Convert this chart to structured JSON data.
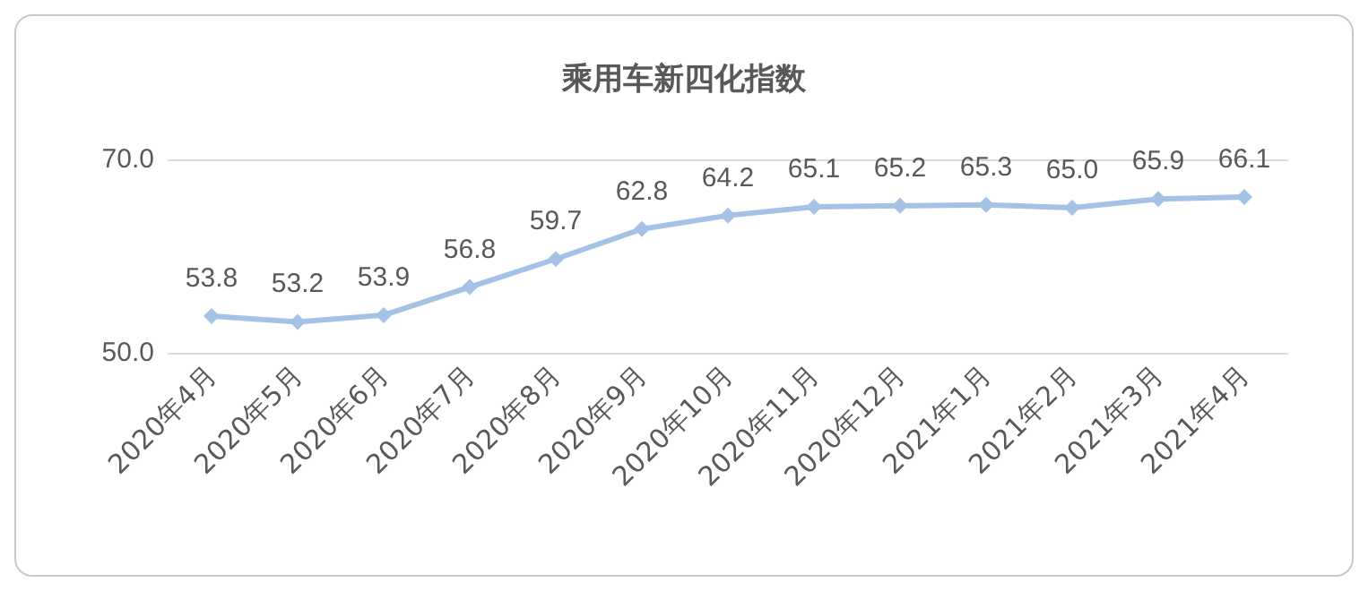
{
  "chart_data": {
    "type": "line",
    "title": "乘用车新四化指数",
    "categories": [
      "2020年4月",
      "2020年5月",
      "2020年6月",
      "2020年7月",
      "2020年8月",
      "2020年9月",
      "2020年10月",
      "2020年11月",
      "2020年12月",
      "2021年1月",
      "2021年2月",
      "2021年3月",
      "2021年4月"
    ],
    "series": [
      {
        "color": "#a4c2e6",
        "values": [
          53.8,
          53.2,
          53.9,
          56.8,
          59.7,
          62.8,
          64.2,
          65.1,
          65.2,
          65.3,
          65.0,
          65.9,
          66.1
        ],
        "value_labels": [
          "53.8",
          "53.2",
          "53.9",
          "56.8",
          "59.7",
          "62.8",
          "64.2",
          "65.1",
          "65.2",
          "65.3",
          "65.0",
          "65.9",
          "66.1"
        ]
      }
    ],
    "ylim": [
      50,
      70
    ],
    "yticks": [
      {
        "value": 50,
        "label": "50.0"
      },
      {
        "value": 70,
        "label": "70.0"
      }
    ],
    "grid": false,
    "marker": "diamond",
    "line_style": "solid"
  }
}
